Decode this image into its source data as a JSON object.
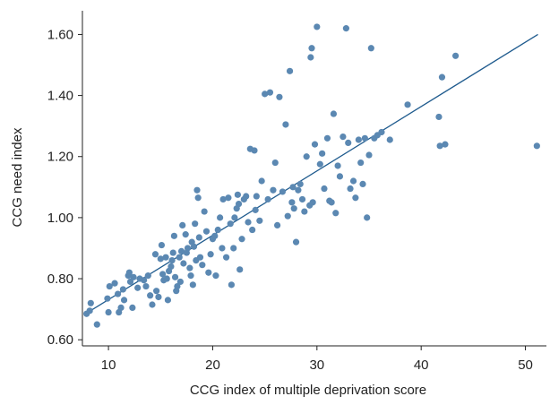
{
  "chart_data": {
    "type": "scatter",
    "title": "",
    "xlabel": "CCG index of multiple deprivation score",
    "ylabel": "CCG need index",
    "xlim": [
      7.5,
      51.5
    ],
    "ylim": [
      0.58,
      1.66
    ],
    "x_ticks": [
      10,
      20,
      30,
      40,
      50
    ],
    "x_tick_labels": [
      "10",
      "20",
      "30",
      "40",
      "50"
    ],
    "y_ticks": [
      0.6,
      0.8,
      1.0,
      1.2,
      1.4,
      1.6
    ],
    "y_tick_labels": [
      "0.60",
      "0.80",
      "1.00",
      "1.20",
      "1.40",
      "1.60"
    ],
    "grid": false,
    "legend": "none",
    "point_color": "#5b88b2",
    "line_color": "#1f5b8e",
    "trend_line": {
      "x": [
        7.8,
        51.2
      ],
      "y": [
        0.685,
        1.6
      ]
    },
    "points": [
      [
        7.9,
        0.685
      ],
      [
        8.3,
        0.72
      ],
      [
        8.2,
        0.695
      ],
      [
        8.9,
        0.65
      ],
      [
        9.9,
        0.735
      ],
      [
        10.0,
        0.69
      ],
      [
        10.1,
        0.775
      ],
      [
        10.6,
        0.785
      ],
      [
        10.9,
        0.75
      ],
      [
        11.0,
        0.69
      ],
      [
        11.2,
        0.705
      ],
      [
        11.4,
        0.765
      ],
      [
        11.5,
        0.73
      ],
      [
        11.9,
        0.81
      ],
      [
        12.0,
        0.82
      ],
      [
        12.1,
        0.79
      ],
      [
        12.3,
        0.705
      ],
      [
        12.4,
        0.805
      ],
      [
        12.8,
        0.77
      ],
      [
        13.0,
        0.8
      ],
      [
        13.4,
        0.795
      ],
      [
        13.6,
        0.775
      ],
      [
        13.8,
        0.81
      ],
      [
        14.0,
        0.745
      ],
      [
        14.2,
        0.715
      ],
      [
        14.5,
        0.88
      ],
      [
        14.6,
        0.76
      ],
      [
        14.8,
        0.74
      ],
      [
        15.0,
        0.865
      ],
      [
        15.1,
        0.91
      ],
      [
        15.2,
        0.815
      ],
      [
        15.3,
        0.795
      ],
      [
        15.5,
        0.87
      ],
      [
        15.6,
        0.8
      ],
      [
        15.7,
        0.73
      ],
      [
        15.8,
        0.825
      ],
      [
        16.0,
        0.84
      ],
      [
        16.1,
        0.86
      ],
      [
        16.2,
        0.885
      ],
      [
        16.3,
        0.94
      ],
      [
        16.4,
        0.805
      ],
      [
        16.5,
        0.76
      ],
      [
        16.6,
        0.775
      ],
      [
        16.8,
        0.87
      ],
      [
        16.9,
        0.79
      ],
      [
        17.0,
        0.89
      ],
      [
        17.1,
        0.975
      ],
      [
        17.2,
        0.85
      ],
      [
        17.4,
        0.945
      ],
      [
        17.5,
        0.885
      ],
      [
        17.6,
        0.9
      ],
      [
        17.8,
        0.835
      ],
      [
        17.9,
        0.81
      ],
      [
        18.0,
        0.92
      ],
      [
        18.1,
        0.78
      ],
      [
        18.2,
        0.905
      ],
      [
        18.3,
        0.98
      ],
      [
        18.4,
        0.86
      ],
      [
        18.5,
        1.09
      ],
      [
        18.6,
        1.065
      ],
      [
        18.7,
        0.935
      ],
      [
        18.8,
        0.87
      ],
      [
        19.0,
        0.845
      ],
      [
        19.2,
        1.02
      ],
      [
        19.4,
        0.955
      ],
      [
        19.6,
        0.82
      ],
      [
        19.8,
        0.88
      ],
      [
        20.0,
        0.93
      ],
      [
        20.2,
        0.94
      ],
      [
        20.3,
        0.81
      ],
      [
        20.5,
        0.96
      ],
      [
        20.7,
        1.0
      ],
      [
        20.9,
        0.9
      ],
      [
        21.0,
        1.06
      ],
      [
        21.3,
        0.87
      ],
      [
        21.5,
        1.065
      ],
      [
        21.7,
        0.98
      ],
      [
        21.8,
        0.78
      ],
      [
        22.0,
        0.9
      ],
      [
        22.1,
        1.0
      ],
      [
        22.3,
        1.03
      ],
      [
        22.4,
        1.075
      ],
      [
        22.5,
        1.045
      ],
      [
        22.6,
        0.83
      ],
      [
        22.8,
        0.93
      ],
      [
        23.0,
        1.06
      ],
      [
        23.2,
        1.07
      ],
      [
        23.4,
        0.985
      ],
      [
        23.6,
        1.225
      ],
      [
        23.8,
        0.96
      ],
      [
        24.0,
        1.22
      ],
      [
        24.1,
        1.025
      ],
      [
        24.2,
        1.07
      ],
      [
        24.5,
        0.99
      ],
      [
        24.7,
        1.12
      ],
      [
        25.0,
        1.405
      ],
      [
        25.3,
        1.06
      ],
      [
        25.5,
        1.41
      ],
      [
        25.8,
        1.09
      ],
      [
        26.0,
        1.18
      ],
      [
        26.2,
        0.975
      ],
      [
        26.4,
        1.395
      ],
      [
        26.7,
        1.085
      ],
      [
        27.0,
        1.305
      ],
      [
        27.2,
        1.005
      ],
      [
        27.4,
        1.48
      ],
      [
        27.6,
        1.05
      ],
      [
        27.7,
        1.1
      ],
      [
        27.8,
        1.03
      ],
      [
        28.0,
        0.92
      ],
      [
        28.2,
        1.09
      ],
      [
        28.4,
        1.11
      ],
      [
        28.6,
        1.06
      ],
      [
        28.8,
        1.02
      ],
      [
        29.0,
        1.2
      ],
      [
        29.3,
        1.04
      ],
      [
        29.4,
        1.525
      ],
      [
        29.5,
        1.555
      ],
      [
        29.6,
        1.05
      ],
      [
        29.8,
        1.24
      ],
      [
        30.0,
        1.625
      ],
      [
        30.3,
        1.175
      ],
      [
        30.5,
        1.21
      ],
      [
        30.7,
        1.095
      ],
      [
        31.0,
        1.26
      ],
      [
        31.2,
        1.055
      ],
      [
        31.4,
        1.05
      ],
      [
        31.6,
        1.34
      ],
      [
        31.8,
        1.015
      ],
      [
        32.0,
        1.17
      ],
      [
        32.2,
        1.135
      ],
      [
        32.5,
        1.265
      ],
      [
        32.8,
        1.62
      ],
      [
        33.0,
        1.245
      ],
      [
        33.2,
        1.095
      ],
      [
        33.5,
        1.12
      ],
      [
        33.7,
        1.065
      ],
      [
        34.0,
        1.255
      ],
      [
        34.2,
        1.18
      ],
      [
        34.4,
        1.11
      ],
      [
        34.6,
        1.26
      ],
      [
        34.8,
        1.0
      ],
      [
        35.0,
        1.205
      ],
      [
        35.2,
        1.555
      ],
      [
        35.5,
        1.26
      ],
      [
        35.8,
        1.27
      ],
      [
        36.2,
        1.28
      ],
      [
        37.0,
        1.255
      ],
      [
        38.7,
        1.37
      ],
      [
        41.7,
        1.33
      ],
      [
        41.8,
        1.235
      ],
      [
        42.0,
        1.46
      ],
      [
        42.3,
        1.24
      ],
      [
        43.3,
        1.53
      ],
      [
        51.1,
        1.235
      ]
    ]
  }
}
